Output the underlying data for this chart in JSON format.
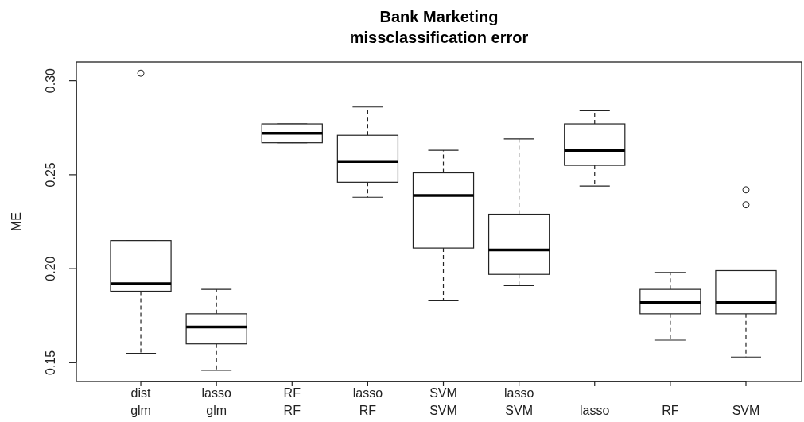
{
  "chart_data": {
    "type": "box",
    "title": "Bank Marketing\nmissclassification error",
    "ylabel": "ME",
    "categories": [
      "dist\nglm",
      "lasso\nglm",
      "RF\nRF",
      "lasso\nRF",
      "SVM\nSVM",
      "lasso\nSVM",
      "lasso",
      "RF",
      "SVM"
    ],
    "boxes": [
      {
        "low": 0.155,
        "q1": 0.188,
        "median": 0.192,
        "q3": 0.215,
        "high": 0.215,
        "outliers": [
          0.304
        ]
      },
      {
        "low": 0.146,
        "q1": 0.16,
        "median": 0.169,
        "q3": 0.176,
        "high": 0.189
      },
      {
        "low": 0.267,
        "q1": 0.267,
        "median": 0.272,
        "q3": 0.277,
        "high": 0.277
      },
      {
        "low": 0.238,
        "q1": 0.246,
        "median": 0.257,
        "q3": 0.271,
        "high": 0.286
      },
      {
        "low": 0.183,
        "q1": 0.211,
        "median": 0.239,
        "q3": 0.251,
        "high": 0.263
      },
      {
        "low": 0.191,
        "q1": 0.197,
        "median": 0.21,
        "q3": 0.229,
        "high": 0.269
      },
      {
        "low": 0.244,
        "q1": 0.255,
        "median": 0.263,
        "q3": 0.277,
        "high": 0.284
      },
      {
        "low": 0.162,
        "q1": 0.176,
        "median": 0.182,
        "q3": 0.189,
        "high": 0.198
      },
      {
        "low": 0.153,
        "q1": 0.176,
        "median": 0.182,
        "q3": 0.199,
        "high": 0.199,
        "outliers": [
          0.242,
          0.234
        ]
      }
    ],
    "ylim": [
      0.14,
      0.31
    ],
    "yticks": [
      0.15,
      {
        "value": 0.2,
        "label": "0.20"
      },
      0.25,
      {
        "value": 0.3,
        "label": "0.30"
      }
    ]
  }
}
